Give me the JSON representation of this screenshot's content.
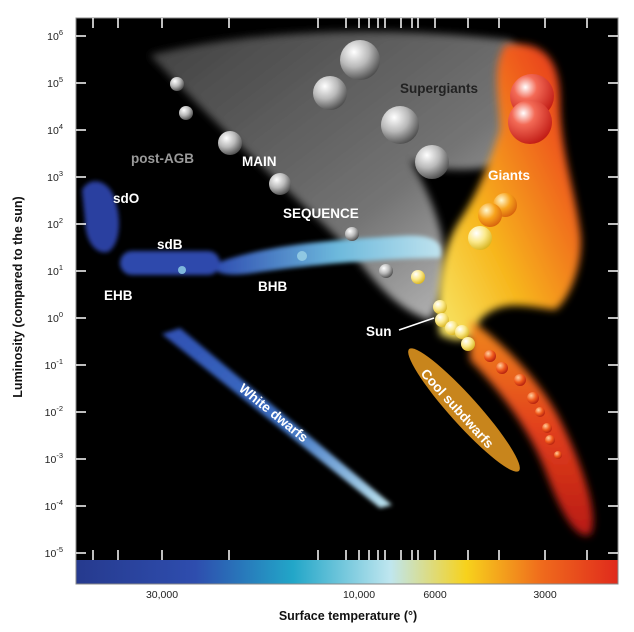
{
  "axes": {
    "y_label": "Luminosity (compared to the sun)",
    "x_label": "Surface temperature (°)",
    "y_ticks": [
      {
        "base": "10",
        "exp": "6"
      },
      {
        "base": "10",
        "exp": "5"
      },
      {
        "base": "10",
        "exp": "4"
      },
      {
        "base": "10",
        "exp": "3"
      },
      {
        "base": "10",
        "exp": "2"
      },
      {
        "base": "10",
        "exp": "1"
      },
      {
        "base": "10",
        "exp": "0"
      },
      {
        "base": "10",
        "exp": "-1"
      },
      {
        "base": "10",
        "exp": "-2"
      },
      {
        "base": "10",
        "exp": "-3"
      },
      {
        "base": "10",
        "exp": "-4"
      },
      {
        "base": "10",
        "exp": "-5"
      }
    ],
    "x_ticks": [
      "30,000",
      "10,000",
      "6000",
      "3000"
    ]
  },
  "regions": {
    "supergiants": "Supergiants",
    "giants": "Giants",
    "post_agb": "post-AGB",
    "main": "MAIN",
    "sequence": "SEQUENCE",
    "sdo": "sdO",
    "sdb": "sdB",
    "ehb": "EHB",
    "bhb": "BHB",
    "sun": "Sun",
    "white_dwarfs": "White dwarfs",
    "cool_subdwarfs": "Cool subdwarfs"
  },
  "colors": {
    "background": "#000000",
    "hot": "#2e3c9c",
    "mid": "#9ed8ea",
    "warm": "#f7c21c",
    "cool": "#e0321c",
    "subdwarf_band": "#c8851c",
    "post_agb_text": "#9a9a9a"
  }
}
